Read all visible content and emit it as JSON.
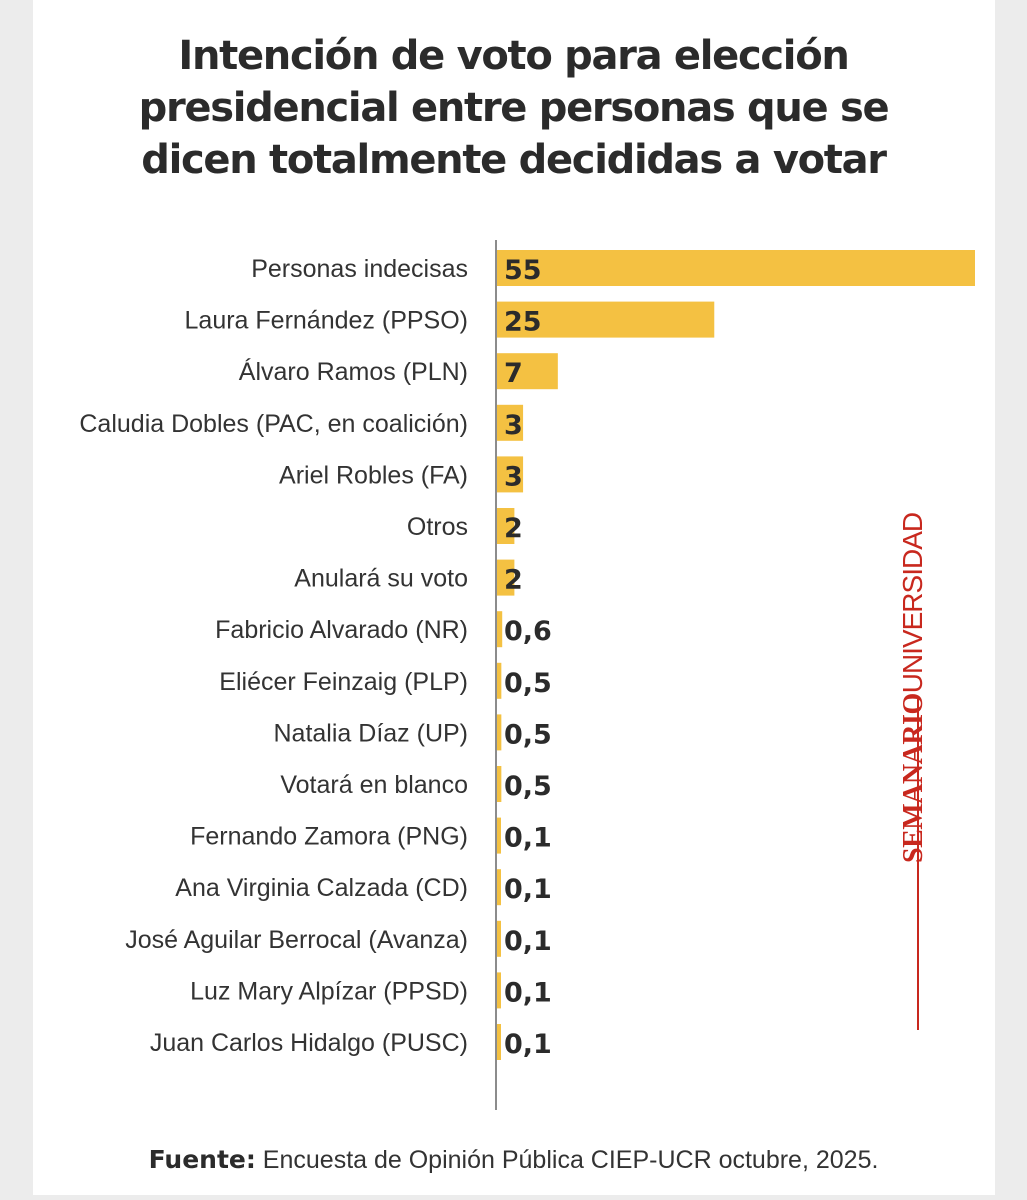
{
  "chart_data": {
    "type": "bar",
    "orientation": "horizontal",
    "title_lines": [
      "Intención de voto para elección",
      "presidencial entre personas que se",
      "dicen totalmente decididas a votar"
    ],
    "categories": [
      "Personas indecisas",
      "Laura Fernández (PPSO)",
      "Álvaro Ramos (PLN)",
      "Caludia Dobles (PAC, en coalición)",
      "Ariel Robles (FA)",
      "Otros",
      "Anulará su voto",
      "Fabricio Alvarado (NR)",
      "Eliécer Feinzaig (PLP)",
      "Natalia Díaz (UP)",
      "Votará en blanco",
      "Fernando Zamora (PNG)",
      "Ana Virginia Calzada (CD)",
      "José Aguilar Berrocal (Avanza)",
      "Luz Mary Alpízar (PPSD)",
      "Juan Carlos Hidalgo (PUSC)"
    ],
    "values": [
      55,
      25,
      7,
      3,
      3,
      2,
      2,
      0.6,
      0.5,
      0.5,
      0.5,
      0.1,
      0.1,
      0.1,
      0.1,
      0.1
    ],
    "value_labels": [
      "55",
      "25",
      "7",
      "3",
      "3",
      "2",
      "2",
      "0,6",
      "0,5",
      "0,5",
      "0,5",
      "0,1",
      "0,1",
      "0,1",
      "0,1",
      "0,1"
    ],
    "xlim": [
      0,
      55
    ],
    "xlabel": "",
    "ylabel": "",
    "grid": false,
    "bar_color": "#f4c142"
  },
  "brand": {
    "part1": "SEMANARIO",
    "part2": "UNIVERSIDAD",
    "color": "#c8281e"
  },
  "source": {
    "label": "Fuente:",
    "text": " Encuesta de Opinión Pública CIEP-UCR octubre, 2025."
  }
}
